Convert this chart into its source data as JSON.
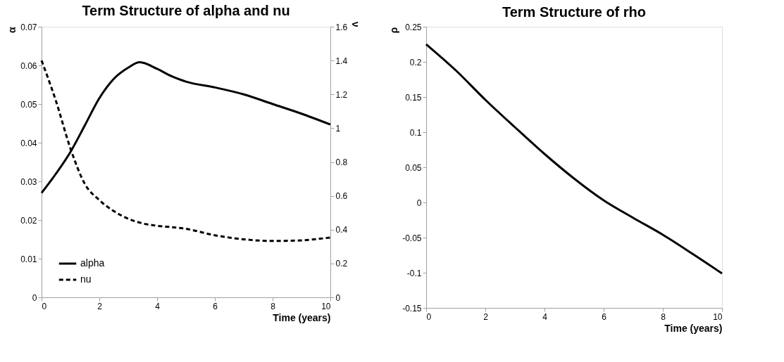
{
  "chart_data": [
    {
      "type": "line",
      "title": "Term Structure of alpha and nu",
      "xlabel": "Time (years)",
      "ylabel": "α",
      "y2label": "ν",
      "xlim": [
        0,
        10
      ],
      "xticks": [
        0,
        2,
        4,
        6,
        8,
        10
      ],
      "ylim": [
        0,
        0.07
      ],
      "yticks": [
        0,
        0.01,
        0.02,
        0.03,
        0.04,
        0.05,
        0.06,
        0.07
      ],
      "y2lim": [
        0,
        1.6
      ],
      "y2ticks": [
        0,
        0.2,
        0.4,
        0.6,
        0.8,
        1,
        1.2,
        1.4,
        1.6
      ],
      "legend": "bottom left",
      "marker": "none",
      "series": [
        {
          "name": "alpha",
          "color": "#000000",
          "line_style": "solid",
          "x": [
            0,
            0.5,
            1,
            1.5,
            2,
            2.5,
            3,
            3.4,
            4,
            4.5,
            5,
            6,
            7,
            8,
            9,
            10
          ],
          "values": [
            0.027,
            0.032,
            0.0376,
            0.0445,
            0.0515,
            0.0565,
            0.0594,
            0.0608,
            0.0591,
            0.0572,
            0.0558,
            0.0543,
            0.0525,
            0.05,
            0.0475,
            0.0447
          ]
        },
        {
          "name": "nu",
          "color": "#000000",
          "line_style": "dashed",
          "axis": "y2",
          "x": [
            0,
            0.5,
            1,
            1.5,
            2,
            2.5,
            3,
            3.5,
            4,
            4.5,
            5,
            6,
            7,
            8,
            9,
            10
          ],
          "values": [
            1.4,
            1.16,
            0.88,
            0.67,
            0.575,
            0.51,
            0.465,
            0.437,
            0.423,
            0.415,
            0.405,
            0.367,
            0.343,
            0.333,
            0.337,
            0.354
          ]
        }
      ]
    },
    {
      "type": "line",
      "title": "Term Structure of rho",
      "xlabel": "Time (years)",
      "ylabel": "ρ",
      "xlim": [
        0,
        10
      ],
      "xticks": [
        0,
        2,
        4,
        6,
        8,
        10
      ],
      "ylim": [
        -0.15,
        0.25
      ],
      "yticks": [
        -0.15,
        -0.1,
        -0.05,
        0,
        0.05,
        0.1,
        0.15,
        0.2,
        0.25
      ],
      "legend": false,
      "marker": "none",
      "series": [
        {
          "color": "#000000",
          "line_style": "solid",
          "x": [
            0,
            1,
            2,
            3,
            4,
            5,
            6,
            7,
            8,
            9,
            10
          ],
          "values": [
            0.225,
            0.188,
            0.146,
            0.107,
            0.069,
            0.034,
            0.003,
            -0.022,
            -0.046,
            -0.073,
            -0.101
          ]
        }
      ]
    }
  ]
}
